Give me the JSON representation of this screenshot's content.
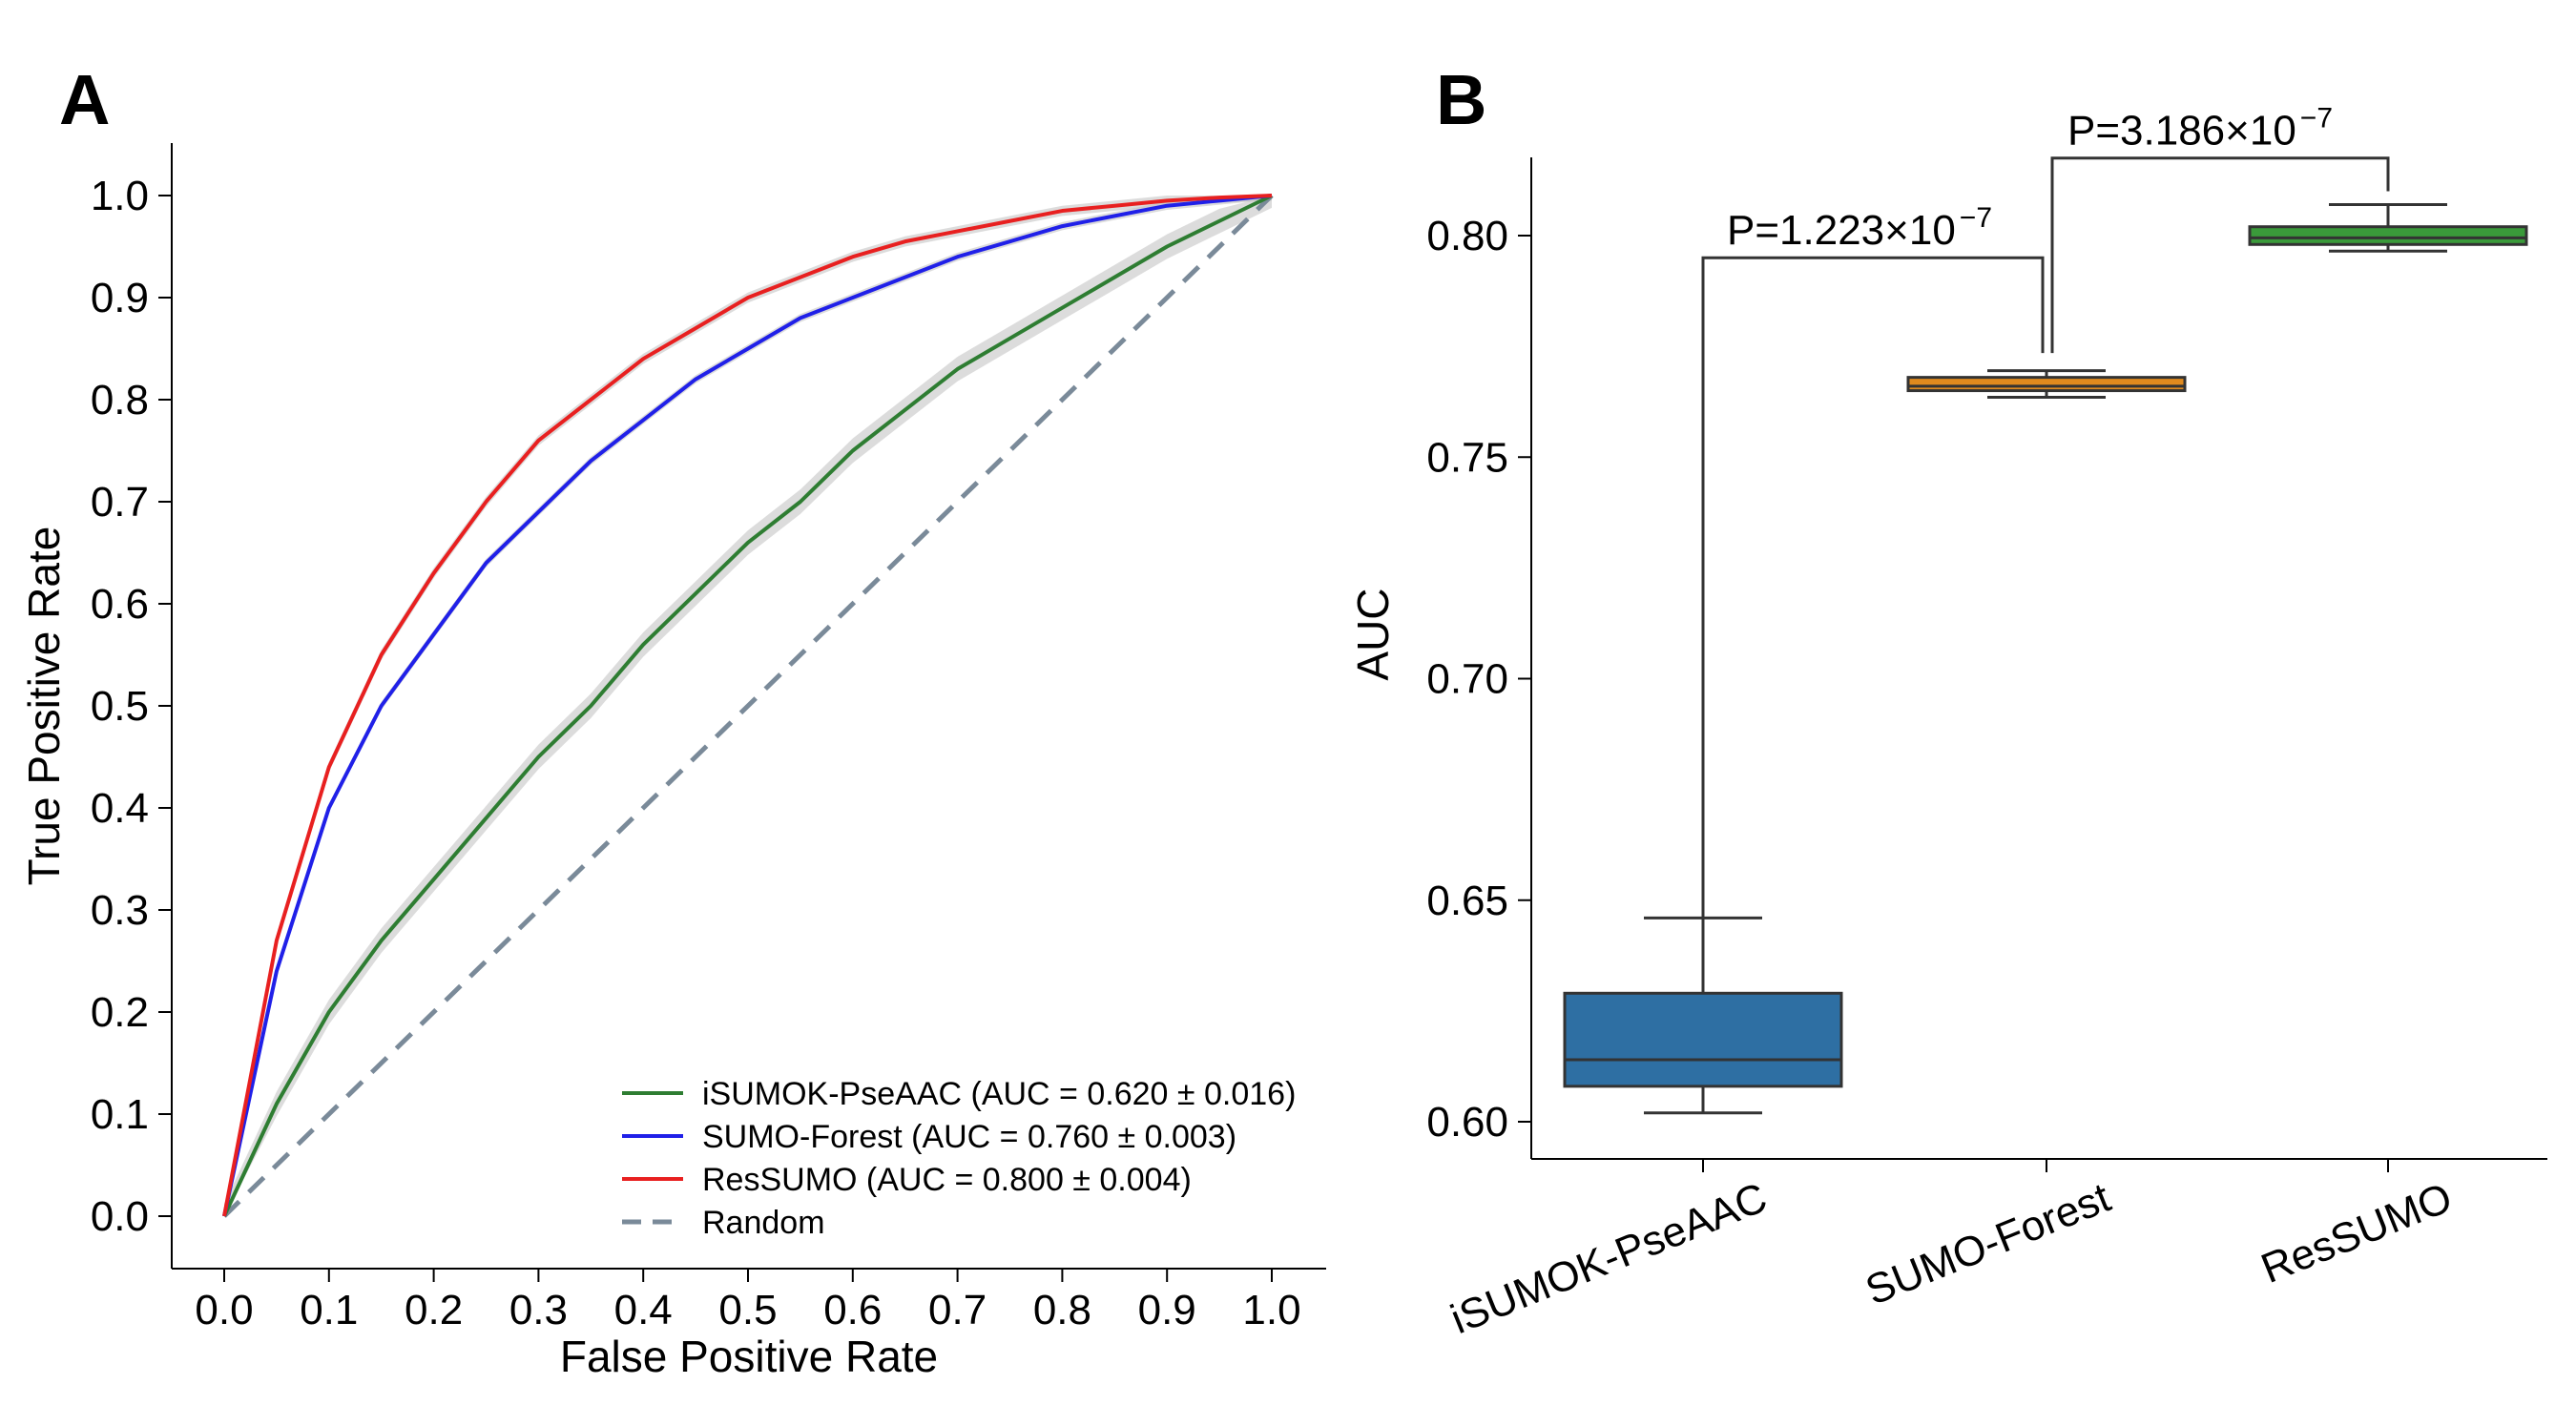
{
  "panels": {
    "a": {
      "label": "A"
    },
    "b": {
      "label": "B"
    }
  },
  "chart_data": [
    {
      "type": "line",
      "panel": "A",
      "title": "",
      "xlabel": "False Positive Rate",
      "ylabel": "True Positive Rate",
      "xlim": [
        0,
        1
      ],
      "ylim": [
        0,
        1
      ],
      "xticks": [
        "0.0",
        "0.1",
        "0.2",
        "0.3",
        "0.4",
        "0.5",
        "0.6",
        "0.7",
        "0.8",
        "0.9",
        "1.0"
      ],
      "yticks": [
        "0.0",
        "0.1",
        "0.2",
        "0.3",
        "0.4",
        "0.5",
        "0.6",
        "0.7",
        "0.8",
        "0.9",
        "1.0"
      ],
      "legend_position": "bottom-right",
      "x": [
        0,
        0.05,
        0.1,
        0.15,
        0.2,
        0.25,
        0.3,
        0.35,
        0.4,
        0.45,
        0.5,
        0.55,
        0.6,
        0.65,
        0.7,
        0.75,
        0.8,
        0.85,
        0.9,
        0.95,
        1.0
      ],
      "series": [
        {
          "name": "iSUMOK-PseAAC",
          "legend": "iSUMOK-PseAAC (AUC = 0.620 ± 0.016)",
          "color": "#2e7d32",
          "band": 0.012,
          "values": [
            0,
            0.11,
            0.2,
            0.27,
            0.33,
            0.39,
            0.45,
            0.5,
            0.56,
            0.61,
            0.66,
            0.7,
            0.75,
            0.79,
            0.83,
            0.86,
            0.89,
            0.92,
            0.95,
            0.975,
            1.0
          ]
        },
        {
          "name": "SUMO-Forest",
          "legend": "SUMO-Forest (AUC = 0.760 ± 0.003)",
          "color": "#2020e8",
          "band": 0.004,
          "values": [
            0,
            0.24,
            0.4,
            0.5,
            0.57,
            0.64,
            0.69,
            0.74,
            0.78,
            0.82,
            0.85,
            0.88,
            0.9,
            0.92,
            0.94,
            0.955,
            0.97,
            0.98,
            0.99,
            0.995,
            1.0
          ]
        },
        {
          "name": "ResSUMO",
          "legend": "ResSUMO (AUC = 0.800 ± 0.004)",
          "color": "#e82020",
          "band": 0.005,
          "values": [
            0,
            0.27,
            0.44,
            0.55,
            0.63,
            0.7,
            0.76,
            0.8,
            0.84,
            0.87,
            0.9,
            0.92,
            0.94,
            0.955,
            0.965,
            0.975,
            0.985,
            0.99,
            0.995,
            0.998,
            1.0
          ]
        },
        {
          "name": "Random",
          "legend": "Random",
          "color": "#7a8a99",
          "dashed": true,
          "values": [
            0,
            0.05,
            0.1,
            0.15,
            0.2,
            0.25,
            0.3,
            0.35,
            0.4,
            0.45,
            0.5,
            0.55,
            0.6,
            0.65,
            0.7,
            0.75,
            0.8,
            0.85,
            0.9,
            0.95,
            1.0
          ]
        }
      ]
    },
    {
      "type": "box",
      "panel": "B",
      "title": "",
      "xlabel": "",
      "ylabel": "AUC",
      "ylim": [
        0.59,
        0.815
      ],
      "yticks": [
        "0.60",
        "0.65",
        "0.70",
        "0.75",
        "0.80"
      ],
      "categories": [
        "iSUMOK-PseAAC",
        "SUMO-Forest",
        "ResSUMO"
      ],
      "boxes": [
        {
          "name": "iSUMOK-PseAAC",
          "color": "#2e6fa3",
          "whisker_low": 0.602,
          "q1": 0.608,
          "median": 0.614,
          "q3": 0.629,
          "whisker_high": 0.646
        },
        {
          "name": "SUMO-Forest",
          "color": "#e08a1e",
          "whisker_low": 0.7635,
          "q1": 0.765,
          "median": 0.766,
          "q3": 0.768,
          "whisker_high": 0.7695
        },
        {
          "name": "ResSUMO",
          "color": "#3a9a3a",
          "whisker_low": 0.7965,
          "q1": 0.798,
          "median": 0.7995,
          "q3": 0.802,
          "whisker_high": 0.807
        }
      ],
      "annotations": [
        {
          "pair": [
            "iSUMOK-PseAAC",
            "SUMO-Forest"
          ],
          "text": "P=1.223×10",
          "exponent": "−7",
          "bracket_y": 0.795,
          "left_drop_to": 0.646,
          "right_drop_to": 0.7735
        },
        {
          "pair": [
            "SUMO-Forest",
            "ResSUMO"
          ],
          "text": "P=3.186×10",
          "exponent": "−7",
          "bracket_y": 0.8175,
          "left_drop_to": 0.7735,
          "right_drop_to": 0.81
        }
      ]
    }
  ]
}
